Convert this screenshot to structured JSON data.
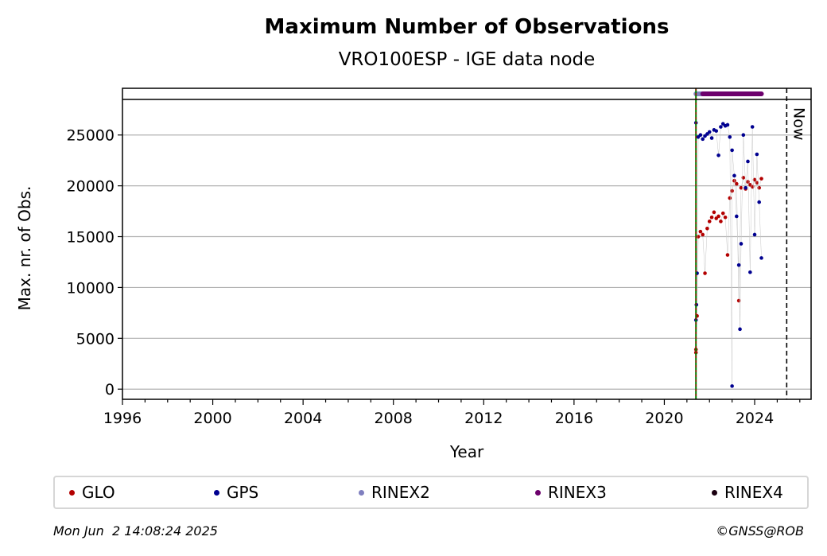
{
  "chart_data": {
    "type": "scatter",
    "title": "Maximum Number of Observations",
    "subtitle": "VRO100ESP - IGE data node",
    "xlabel": "Year",
    "ylabel": "Max. nr. of Obs.",
    "xlim": [
      1996,
      2026.5
    ],
    "ylim": [
      -1000,
      28500
    ],
    "x_ticks": [
      1996,
      2000,
      2004,
      2008,
      2012,
      2016,
      2020,
      2024
    ],
    "y_ticks": [
      0,
      5000,
      10000,
      15000,
      20000,
      25000
    ],
    "grid": "horizontal",
    "legend_placement": "below",
    "now_label": "Now",
    "now_year": 2025.42,
    "start_year": 2021.4,
    "series": [
      {
        "name": "GLO",
        "color": "#b30000",
        "points": [
          [
            2021.4,
            3600
          ],
          [
            2021.4,
            3900
          ],
          [
            2021.45,
            7200
          ],
          [
            2021.5,
            15000
          ],
          [
            2021.6,
            15500
          ],
          [
            2021.7,
            15200
          ],
          [
            2021.8,
            11400
          ],
          [
            2021.9,
            15800
          ],
          [
            2022.0,
            16500
          ],
          [
            2022.1,
            16900
          ],
          [
            2022.2,
            17400
          ],
          [
            2022.3,
            16800
          ],
          [
            2022.4,
            17000
          ],
          [
            2022.5,
            16500
          ],
          [
            2022.6,
            17300
          ],
          [
            2022.7,
            16900
          ],
          [
            2022.8,
            13200
          ],
          [
            2022.9,
            18800
          ],
          [
            2023.0,
            19500
          ],
          [
            2023.1,
            20500
          ],
          [
            2023.2,
            20200
          ],
          [
            2023.3,
            8700
          ],
          [
            2023.4,
            19800
          ],
          [
            2023.5,
            20800
          ],
          [
            2023.6,
            19700
          ],
          [
            2023.7,
            20400
          ],
          [
            2023.8,
            20100
          ],
          [
            2023.9,
            19900
          ],
          [
            2024.0,
            20600
          ],
          [
            2024.1,
            20300
          ],
          [
            2024.2,
            19800
          ],
          [
            2024.3,
            20700
          ]
        ]
      },
      {
        "name": "GPS",
        "color": "#000090",
        "points": [
          [
            2021.4,
            6800
          ],
          [
            2021.42,
            8300
          ],
          [
            2021.45,
            11400
          ],
          [
            2021.4,
            26200
          ],
          [
            2021.5,
            24800
          ],
          [
            2021.6,
            25000
          ],
          [
            2021.7,
            24600
          ],
          [
            2021.8,
            24900
          ],
          [
            2021.9,
            25100
          ],
          [
            2022.0,
            25300
          ],
          [
            2022.1,
            24700
          ],
          [
            2022.2,
            25500
          ],
          [
            2022.3,
            25400
          ],
          [
            2022.4,
            23000
          ],
          [
            2022.5,
            25800
          ],
          [
            2022.6,
            26100
          ],
          [
            2022.7,
            25900
          ],
          [
            2022.8,
            26000
          ],
          [
            2022.9,
            24800
          ],
          [
            2023.0,
            300
          ],
          [
            2023.0,
            23500
          ],
          [
            2023.1,
            21000
          ],
          [
            2023.2,
            17000
          ],
          [
            2023.3,
            12200
          ],
          [
            2023.35,
            5900
          ],
          [
            2023.4,
            14300
          ],
          [
            2023.5,
            25000
          ],
          [
            2023.6,
            19800
          ],
          [
            2023.7,
            22400
          ],
          [
            2023.8,
            11500
          ],
          [
            2023.9,
            25800
          ],
          [
            2024.0,
            15200
          ],
          [
            2024.1,
            23100
          ],
          [
            2024.2,
            18400
          ],
          [
            2024.3,
            12900
          ]
        ]
      },
      {
        "name": "RINEX2",
        "color": "#7f7fbf",
        "points": []
      },
      {
        "name": "RINEX3",
        "color": "#6c006c",
        "points": []
      },
      {
        "name": "RINEX4",
        "color": "#1a0010",
        "points": []
      }
    ]
  },
  "footer": {
    "timestamp": "Mon Jun  2 14:08:24 2025",
    "copyright": "©GNSS@ROB"
  }
}
